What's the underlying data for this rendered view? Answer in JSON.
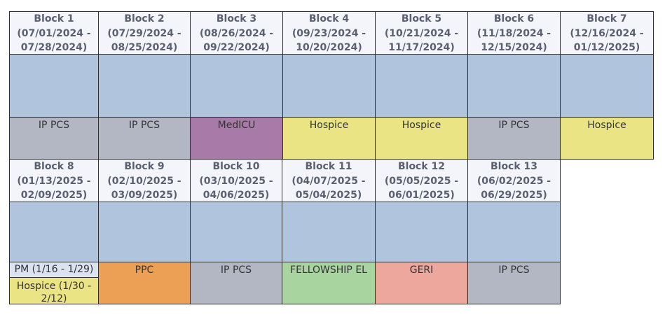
{
  "colors": {
    "header_bg": "#f3f5fa",
    "empty_bg": "#b0c4de",
    "ip_pcs": "#b2b7c3",
    "medicu": "#a87aa8",
    "hospice": "#ebe485",
    "ppc": "#eba055",
    "fellowship_el": "#a8d4a0",
    "geri": "#eda79c",
    "pm": "#dbe2f0"
  },
  "blocks": [
    {
      "name": "Block 1",
      "range_l1": "(07/01/2024 -",
      "range_l2": "07/28/2024)",
      "rotation": "IP PCS"
    },
    {
      "name": "Block 2",
      "range_l1": "(07/29/2024 -",
      "range_l2": "08/25/2024)",
      "rotation": "IP PCS"
    },
    {
      "name": "Block 3",
      "range_l1": "(08/26/2024 -",
      "range_l2": "09/22/2024)",
      "rotation": "MedICU"
    },
    {
      "name": "Block 4",
      "range_l1": "(09/23/2024 -",
      "range_l2": "10/20/2024)",
      "rotation": "Hospice"
    },
    {
      "name": "Block 5",
      "range_l1": "(10/21/2024 -",
      "range_l2": "11/17/2024)",
      "rotation": "Hospice"
    },
    {
      "name": "Block 6",
      "range_l1": "(11/18/2024 -",
      "range_l2": "12/15/2024)",
      "rotation": "IP PCS"
    },
    {
      "name": "Block 7",
      "range_l1": "(12/16/2024 -",
      "range_l2": "01/12/2025)",
      "rotation": "Hospice"
    },
    {
      "name": "Block 8",
      "range_l1": "(01/13/2025 -",
      "range_l2": "02/09/2025)",
      "rotation_a": "PM (1/16 - 1/29)",
      "rotation_b_l1": "Hospice (1/30 -",
      "rotation_b_l2": "2/12)"
    },
    {
      "name": "Block 9",
      "range_l1": "(02/10/2025 -",
      "range_l2": "03/09/2025)",
      "rotation": "PPC"
    },
    {
      "name": "Block 10",
      "range_l1": "(03/10/2025 -",
      "range_l2": "04/06/2025)",
      "rotation": "IP PCS"
    },
    {
      "name": "Block 11",
      "range_l1": "(04/07/2025 -",
      "range_l2": "05/04/2025)",
      "rotation": "FELLOWSHIP EL"
    },
    {
      "name": "Block 12",
      "range_l1": "(05/05/2025 -",
      "range_l2": "06/01/2025)",
      "rotation": "GERI"
    },
    {
      "name": "Block 13",
      "range_l1": "(06/02/2025 -",
      "range_l2": "06/29/2025)",
      "rotation": "IP PCS"
    }
  ]
}
